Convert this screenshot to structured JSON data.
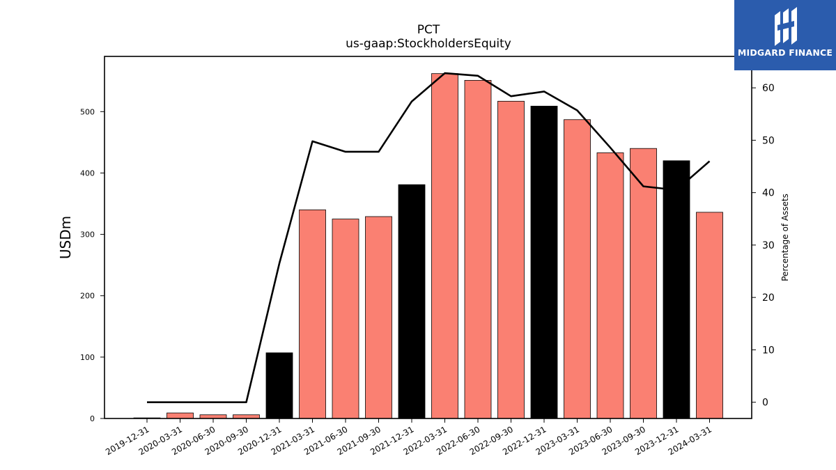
{
  "chart_data": {
    "type": "bar",
    "title": "PCT",
    "subtitle": "us-gaap:StockholdersEquity",
    "ylabel": "USDm",
    "ylabel_right": "Percentage of Assets",
    "ylim": [
      0,
      590
    ],
    "ylim_right": [
      -3.1,
      66
    ],
    "yticks_left": [
      0,
      100,
      200,
      300,
      400,
      500
    ],
    "yticks_right": [
      0,
      10,
      20,
      30,
      40,
      50,
      60
    ],
    "categories": [
      "2019-12-31",
      "2020-03-31",
      "2020-06-30",
      "2020-09-30",
      "2020-12-31",
      "2021-03-31",
      "2021-06-30",
      "2021-09-30",
      "2021-12-31",
      "2022-03-31",
      "2022-06-30",
      "2022-09-30",
      "2022-12-31",
      "2023-03-31",
      "2023-06-30",
      "2023-09-30",
      "2023-12-31",
      "2024-03-31"
    ],
    "series": [
      {
        "values": [
          1,
          9,
          6,
          6,
          107,
          340,
          325,
          329,
          381,
          562,
          551,
          517,
          509,
          487,
          433,
          440,
          420,
          336
        ],
        "colors": [
          "#000000",
          "#fa8072",
          "#fa8072",
          "#fa8072",
          "#000000",
          "#fa8072",
          "#fa8072",
          "#fa8072",
          "#000000",
          "#fa8072",
          "#fa8072",
          "#fa8072",
          "#000000",
          "#fa8072",
          "#fa8072",
          "#fa8072",
          "#000000",
          "#fa8072"
        ]
      },
      {
        "type": "line",
        "axis": "right",
        "values": [
          0,
          0,
          0,
          0,
          26.5,
          49.8,
          47.8,
          47.8,
          57.4,
          62.8,
          62.3,
          58.4,
          59.3,
          55.7,
          48.6,
          41.2,
          40.5,
          46
        ],
        "color": "#000000"
      }
    ],
    "grid": false
  },
  "logo": {
    "text": "MIDGARD FINANCE",
    "bg_color": "#2b5cad"
  }
}
